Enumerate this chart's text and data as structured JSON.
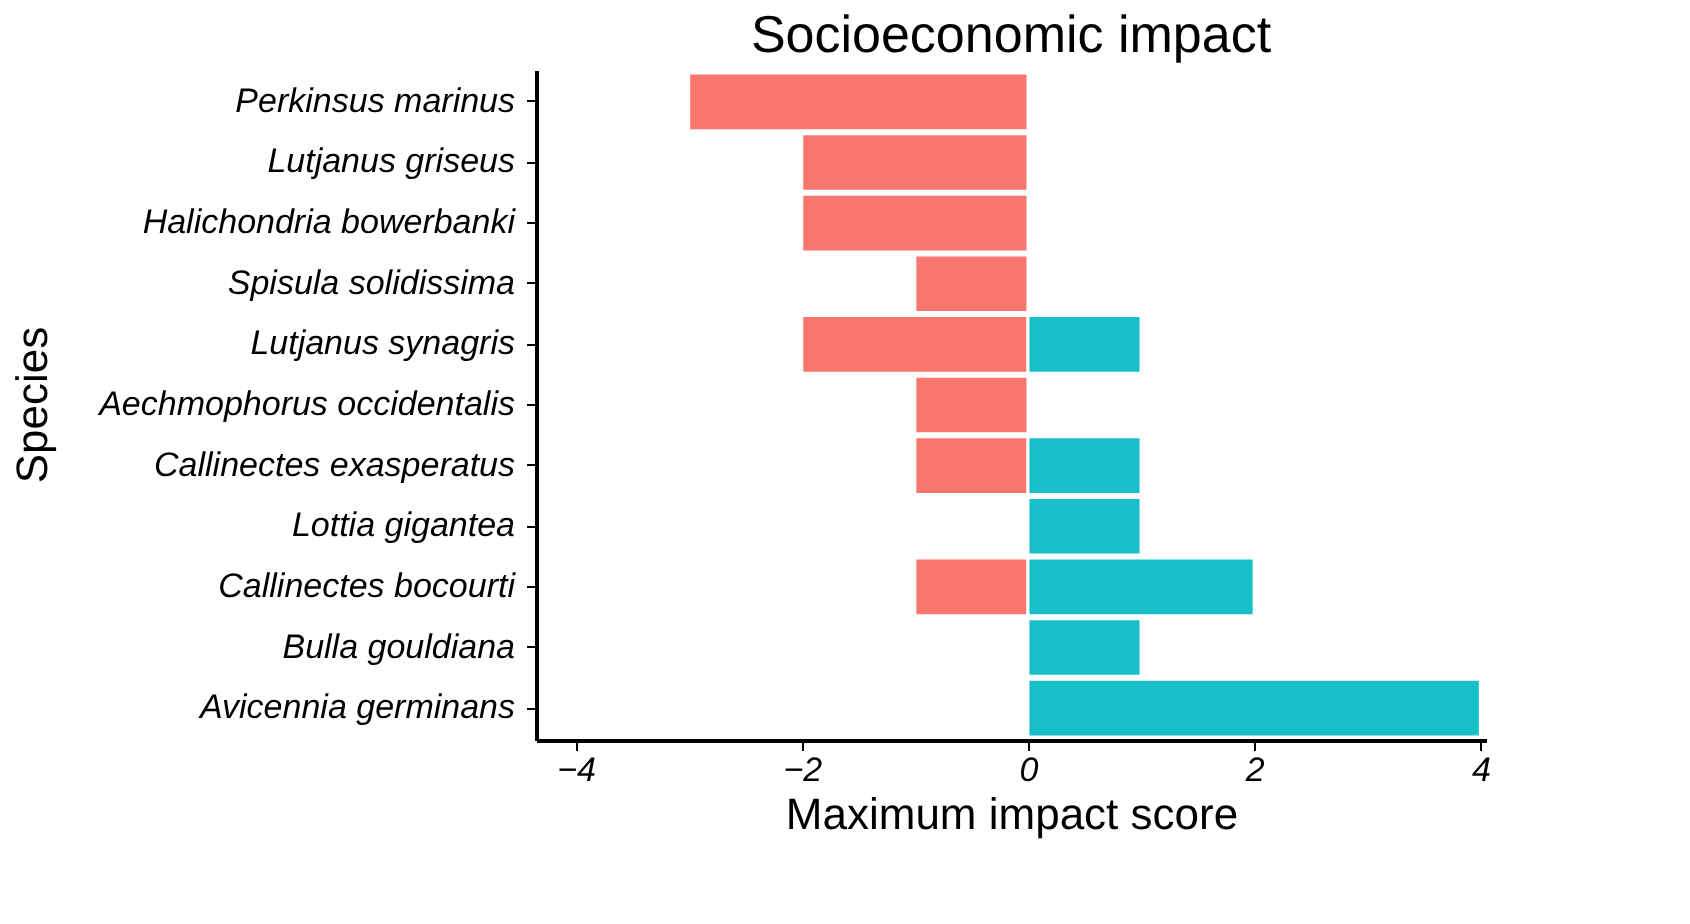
{
  "chart_data": {
    "type": "bar",
    "orientation": "horizontal",
    "stacked": true,
    "title": "Socioeconomic impact",
    "xlabel": "Maximum impact score",
    "ylabel": "Species",
    "categories": [
      "Perkinsus marinus",
      "Lutjanus griseus",
      "Halichondria bowerbanki",
      "Spisula solidissima",
      "Lutjanus synagris",
      "Aechmophorus occidentalis",
      "Callinectes exasperatus",
      "Lottia gigantea",
      "Callinectes bocourti",
      "Bulla gouldiana",
      "Avicennia germinans"
    ],
    "series": [
      {
        "color": "#f8766d",
        "values": [
          -3,
          -2,
          -2,
          -1,
          -2,
          -1,
          -1,
          null,
          -1,
          null,
          null
        ]
      },
      {
        "color": "#17c0c8",
        "values": [
          null,
          null,
          null,
          null,
          1,
          null,
          1,
          1,
          2,
          1,
          4
        ]
      }
    ],
    "xlim": [
      -4.35,
      4.05
    ],
    "xticks": [
      -4,
      -2,
      0,
      2,
      4
    ],
    "grid": false,
    "legend": false
  }
}
